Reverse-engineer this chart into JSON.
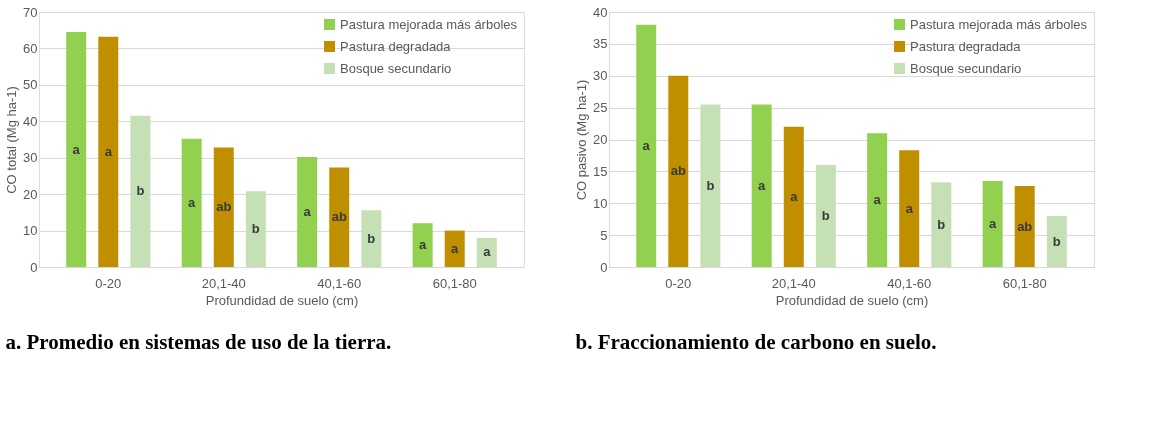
{
  "chart_data": [
    {
      "type": "bar",
      "title": "a.  Promedio en sistemas de uso de la tierra.",
      "xlabel": "Profundidad de suelo (cm)",
      "ylabel": "CO total (Mg ha-1)",
      "categories": [
        "0-20",
        "20,1-40",
        "40,1-60",
        "60,1-80"
      ],
      "series": [
        {
          "name": "Pastura mejorada más árboles",
          "color": "#92d050",
          "values": [
            64.5,
            35.2,
            30.2,
            12.0
          ],
          "value_labels": [
            "a",
            "a",
            "a",
            "a"
          ]
        },
        {
          "name": "Pastura degradada",
          "color": "#bf8f00",
          "values": [
            63.2,
            32.8,
            27.3,
            10.0
          ],
          "value_labels": [
            "a",
            "ab",
            "ab",
            "a"
          ]
        },
        {
          "name": "Bosque secundario",
          "color": "#c5e0b4",
          "values": [
            41.5,
            20.8,
            15.6,
            8.0
          ],
          "value_labels": [
            "b",
            "b",
            "b",
            "a"
          ]
        }
      ],
      "ylim": [
        0,
        70
      ],
      "yticks": [
        0,
        10,
        20,
        30,
        40,
        50,
        60,
        70
      ],
      "grid": "y",
      "legend": "top right"
    },
    {
      "type": "bar",
      "title": "b.  Fraccionamiento de carbono en suelo.",
      "xlabel": "Profundidad de suelo (cm)",
      "ylabel": "CO pasivo (Mg ha-1)",
      "categories": [
        "0-20",
        "20,1-40",
        "40,1-60",
        "60,1-80"
      ],
      "series": [
        {
          "name": "Pastura mejorada más árboles",
          "color": "#92d050",
          "values": [
            38.0,
            25.5,
            21.0,
            13.5
          ],
          "value_labels": [
            "a",
            "a",
            "a",
            "a"
          ]
        },
        {
          "name": "Pastura degradada",
          "color": "#bf8f00",
          "values": [
            30.0,
            22.0,
            18.3,
            12.7
          ],
          "value_labels": [
            "ab",
            "a",
            "a",
            "ab"
          ]
        },
        {
          "name": "Bosque secundario",
          "color": "#c5e0b4",
          "values": [
            25.5,
            16.0,
            13.3,
            8.0
          ],
          "value_labels": [
            "b",
            "b",
            "b",
            "b"
          ]
        }
      ],
      "ylim": [
        0,
        40
      ],
      "yticks": [
        0,
        5,
        10,
        15,
        20,
        25,
        30,
        35,
        40
      ],
      "grid": "y",
      "legend": "top right"
    }
  ]
}
